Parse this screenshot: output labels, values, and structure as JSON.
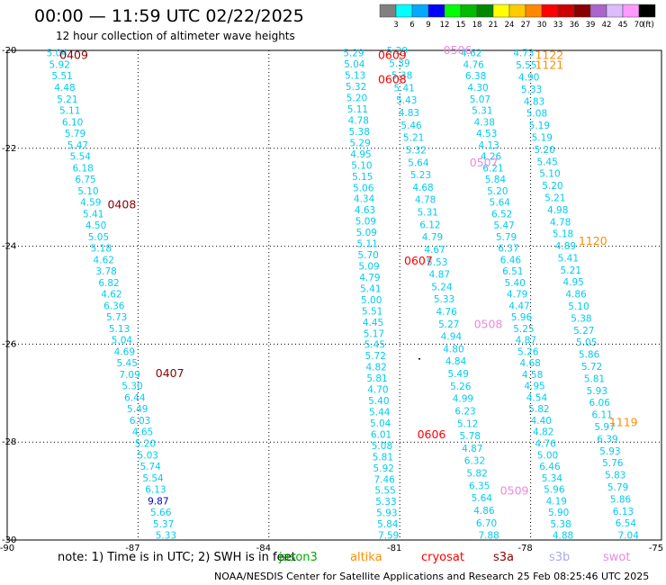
{
  "header": {
    "title": "00:00 — 11:59 UTC 02/22/2025",
    "subtitle": "12 hour collection of altimeter wave heights"
  },
  "footer": {
    "note": "note: 1) Time is in UTC; 2) SWH is in feet",
    "credit": "NOAA/NESDIS Center for Satellite Applications and Research    25 Feb 08:25:46 UTC 2025"
  },
  "satellites": [
    {
      "name": "jason3",
      "color": "#00aa00"
    },
    {
      "name": "altika",
      "color": "#ff8c00"
    },
    {
      "name": "cryosat",
      "color": "#ff0000"
    },
    {
      "name": "s3a",
      "color": "#8b0000"
    },
    {
      "name": "s3b",
      "color": "#aaaaee"
    },
    {
      "name": "swot",
      "color": "#ee88dd"
    }
  ],
  "colors": {
    "ink": "#000000",
    "grid": "#000000",
    "label_cyan": "#00ccee",
    "label_blue": "#0000cc",
    "pass_s3a": "#8b0000",
    "pass_cryosat": "#ff0000",
    "pass_swot": "#ee88dd",
    "pass_altika": "#ff8c00",
    "pass_s3b": "#aaaaee"
  },
  "chart_data": {
    "type": "scatter",
    "title": "00:00 — 11:59 UTC 02/22/2025",
    "xlabel": "",
    "ylabel": "",
    "xlim": [
      -90,
      -75
    ],
    "ylim": [
      -30,
      -20
    ],
    "x_ticks": [
      -90,
      -87,
      -84,
      -81,
      -78,
      -75
    ],
    "y_ticks": [
      -20,
      -22,
      -24,
      -26,
      -28,
      -30
    ],
    "x_tick_labels": [
      "-90",
      "-87",
      "-84",
      "-81",
      "-78",
      "-75"
    ],
    "y_tick_labels": [
      "-20",
      "-22",
      "-24",
      "-26",
      "-28",
      "-30"
    ],
    "grid": true,
    "legend": {
      "unit": "(ft)",
      "ticks": [
        "3",
        "6",
        "9",
        "12",
        "15",
        "18",
        "21",
        "24",
        "27",
        "30",
        "33",
        "36",
        "39",
        "42",
        "45",
        "70"
      ],
      "colors": [
        "#808080",
        "#00ffff",
        "#00aaff",
        "#0000ff",
        "#00ff00",
        "#00bb00",
        "#008800",
        "#ffff00",
        "#ffcc00",
        "#ff8800",
        "#ff0000",
        "#cc0000",
        "#880000",
        "#aa66cc",
        "#ddbbff",
        "#ff99ff",
        "#000000"
      ]
    },
    "pass_labels": [
      {
        "text": "0409",
        "x": -88.8,
        "y": -20.1,
        "color": "#8b0000"
      },
      {
        "text": "0408",
        "x": -87.7,
        "y": -23.15,
        "color": "#8b0000"
      },
      {
        "text": "0407",
        "x": -86.6,
        "y": -26.6,
        "color": "#8b0000"
      },
      {
        "text": "0609",
        "x": -81.5,
        "y": -20.1,
        "color": "#ff0000"
      },
      {
        "text": "0608",
        "x": -81.5,
        "y": -20.6,
        "color": "#ff0000"
      },
      {
        "text": "0607",
        "x": -80.9,
        "y": -24.3,
        "color": "#ff0000"
      },
      {
        "text": "0606",
        "x": -80.6,
        "y": -27.85,
        "color": "#ff0000"
      },
      {
        "text": "0506",
        "x": -80.0,
        "y": -20.0,
        "color": "#ee88dd"
      },
      {
        "text": "0507",
        "x": -79.4,
        "y": -22.3,
        "color": "#ee88dd"
      },
      {
        "text": "0508",
        "x": -79.3,
        "y": -25.6,
        "color": "#ee88dd"
      },
      {
        "text": "0509",
        "x": -78.7,
        "y": -29.0,
        "color": "#ee88dd"
      },
      {
        "text": "1122",
        "x": -77.9,
        "y": -20.1,
        "color": "#ff8c00"
      },
      {
        "text": "1121",
        "x": -77.9,
        "y": -20.3,
        "color": "#ff8c00"
      },
      {
        "text": "1120",
        "x": -76.9,
        "y": -23.9,
        "color": "#ff8c00"
      },
      {
        "text": "1119",
        "x": -76.2,
        "y": -27.6,
        "color": "#ff8c00"
      }
    ],
    "series": [
      {
        "name": "s3a pass 0409-0407",
        "color": "#00ccee",
        "x0": -89.1,
        "y0": -20.05,
        "x1": -86.6,
        "y1": -29.9,
        "values": [
          "5.04",
          "5.92",
          "5.51",
          "4.48",
          "5.21",
          "5.11",
          "6.10",
          "5.79",
          "5.47",
          "5.54",
          "6.18",
          "6.75",
          "5.10",
          "4.59",
          "5.41",
          "4.50",
          "5.05",
          "5.18",
          "4.62",
          "3.78",
          "6.82",
          "4.62",
          "6.36",
          "5.73",
          "5.13",
          "5.04",
          "4.69",
          "5.45",
          "7.09",
          "5.30",
          "6.44",
          "5.49",
          "6.03",
          "4.65",
          "5.20",
          "5.03",
          "5.74",
          "5.54",
          "6.13",
          "9.87",
          "5.66",
          "5.37",
          "5.33"
        ]
      },
      {
        "name": "cryosat pass",
        "color": "#00ccee",
        "x0": -82.3,
        "y0": -20.05,
        "x1": -81.5,
        "y1": -29.9,
        "values": [
          "5.29",
          "5.04",
          "5.13",
          "5.32",
          "5.20",
          "5.11",
          "4.78",
          "5.38",
          "5.29",
          "4.95",
          "5.10",
          "5.15",
          "5.06",
          "4.34",
          "4.63",
          "5.09",
          "5.09",
          "5.11",
          "5.70",
          "5.09",
          "4.79",
          "5.41",
          "5.00",
          "5.51",
          "4.45",
          "5.17",
          "5.45",
          "5.72",
          "4.82",
          "5.81",
          "4.70",
          "5.40",
          "5.44",
          "5.04",
          "6.01",
          "5.08",
          "5.81",
          "5.92",
          "7.46",
          "5.55",
          "5.33",
          "5.93",
          "5.84",
          "7.59"
        ]
      },
      {
        "name": "swot pass",
        "color": "#00ccee",
        "x0": -81.3,
        "y0": -20.0,
        "x1": -79.2,
        "y1": -29.9,
        "values": [
          "5.29",
          "5.39",
          "5.38",
          "5.41",
          "5.43",
          "4.83",
          "5.46",
          "5.21",
          "5.32",
          "5.64",
          "5.23",
          "4.68",
          "4.78",
          "5.31",
          "6.12",
          "4.79",
          "4.67",
          "5.53",
          "4.87",
          "5.24",
          "5.33",
          "4.76",
          "5.27",
          "4.94",
          "4.80",
          "4.84",
          "5.49",
          "5.26",
          "4.99",
          "6.23",
          "5.12",
          "5.78",
          "4.87",
          "6.32",
          "5.82",
          "6.35",
          "5.64",
          "4.86",
          "6.70",
          "7.88"
        ]
      },
      {
        "name": "altika pass 1122",
        "color": "#00ccee",
        "x0": -79.6,
        "y0": -20.05,
        "x1": -77.5,
        "y1": -29.9,
        "values": [
          "4.62",
          "4.76",
          "6.38",
          "4.30",
          "5.07",
          "5.31",
          "4.38",
          "4.53",
          "4.13",
          "4.26",
          "6.21",
          "5.84",
          "5.20",
          "5.64",
          "6.52",
          "5.47",
          "5.79",
          "6.37",
          "6.46",
          "6.51",
          "5.40",
          "4.79",
          "4.47",
          "5.96",
          "5.25",
          "4.87",
          "5.26",
          "4.68",
          "4.58",
          "4.95",
          "4.54",
          "5.82",
          "4.40",
          "4.82",
          "4.76",
          "5.00",
          "6.46",
          "5.34",
          "5.96",
          "4.19",
          "5.90",
          "5.38",
          "4.88"
        ]
      },
      {
        "name": "altika pass 1121",
        "color": "#00ccee",
        "x0": -78.4,
        "y0": -20.05,
        "x1": -76.0,
        "y1": -29.9,
        "values": [
          "4.73",
          "5.55",
          "4.90",
          "5.33",
          "4.83",
          "5.08",
          "5.19",
          "5.19",
          "5.20",
          "5.45",
          "5.10",
          "5.20",
          "5.21",
          "4.98",
          "4.78",
          "5.18",
          "4.89",
          "5.41",
          "5.21",
          "4.95",
          "4.86",
          "5.10",
          "5.38",
          "5.27",
          "5.05",
          "5.86",
          "5.72",
          "5.81",
          "5.93",
          "6.06",
          "6.11",
          "5.97",
          "6.39",
          "5.93",
          "5.76",
          "5.83",
          "5.79",
          "5.86",
          "6.13",
          "6.54",
          "7.04"
        ]
      }
    ],
    "marks": [
      {
        "x": -80.55,
        "y": -26.3,
        "color": "#000000"
      }
    ]
  }
}
